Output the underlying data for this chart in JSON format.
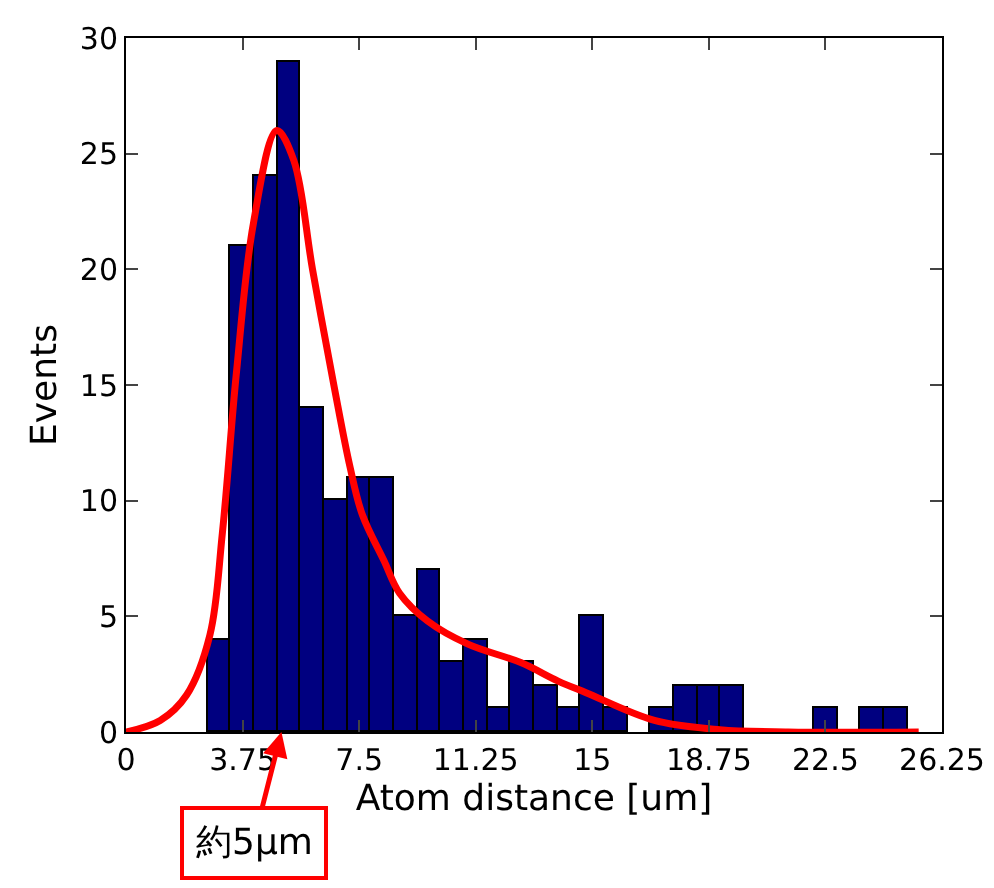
{
  "chart_data": {
    "type": "histogram",
    "xlabel": "Atom distance [um]",
    "ylabel": "Events",
    "bins": [
      2.625,
      3.375,
      4.125,
      4.875,
      5.625,
      6.375,
      7.125,
      7.875,
      8.625,
      9.375,
      10.125,
      10.875,
      11.625,
      12.375,
      13.125,
      13.875,
      14.625,
      15.375,
      16.125,
      16.875,
      17.625,
      18.375,
      19.125,
      19.875,
      20.625,
      21.375,
      22.125,
      22.875,
      23.625,
      24.375,
      25.125
    ],
    "series": [
      {
        "color": "#000080",
        "values": [
          4,
          21,
          24,
          29,
          14,
          10,
          11,
          11,
          5,
          7,
          3,
          4,
          1,
          3,
          2,
          1,
          5,
          1,
          0,
          1,
          2,
          2,
          2,
          0,
          0,
          0,
          1,
          0,
          1,
          1
        ]
      },
      {
        "type": "line",
        "color": "#ff0000",
        "x": [
          0,
          1.1,
          1.95,
          2.7,
          3.1,
          3.55,
          4.1,
          4.85,
          5.4,
          6,
          6.7,
          7.2,
          7.6,
          8.3,
          8.8,
          9.7,
          11,
          12.7,
          13.9,
          14.8,
          17,
          19.1,
          21.3,
          25.5
        ],
        "values": [
          0,
          0.5,
          1.6,
          4.2,
          8.6,
          15.5,
          22,
          26,
          24.7,
          20,
          14.9,
          11.5,
          9.4,
          7.4,
          6,
          4.8,
          3.8,
          3,
          2.2,
          1.7,
          0.5,
          0.1,
          0,
          0
        ]
      }
    ],
    "xlim": [
      0,
      26.25
    ],
    "xticks": [
      0,
      3.75,
      7.5,
      11.25,
      15,
      18.75,
      22.5,
      26.25
    ],
    "ylim": [
      0,
      30
    ],
    "yticks": [
      0,
      5,
      10,
      15,
      20,
      25,
      30
    ],
    "grid": false,
    "annotations": [
      {
        "text": "約5μm",
        "x": 5,
        "y": 0
      }
    ]
  }
}
